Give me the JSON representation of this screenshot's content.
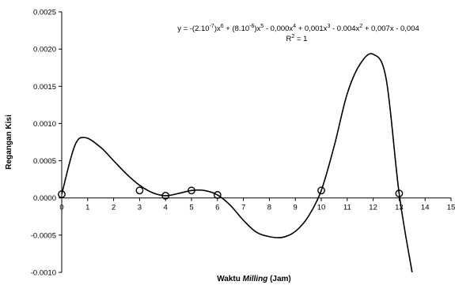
{
  "chart_data": {
    "type": "scatter",
    "xlabel_parts": [
      "Waktu ",
      "Milling",
      " (Jam)"
    ],
    "ylabel": "Regangan Kisi",
    "xlim": [
      0,
      15
    ],
    "ylim": [
      -0.001,
      0.0025
    ],
    "x_ticks": [
      "0",
      "1",
      "2",
      "3",
      "4",
      "5",
      "6",
      "7",
      "8",
      "9",
      "10",
      "11",
      "12",
      "13",
      "14",
      "15"
    ],
    "y_ticks": [
      "-0.0010",
      "-0.0005",
      "0.0000",
      "0.0005",
      "0.0010",
      "0.0015",
      "0.0020",
      "0.0025"
    ],
    "series": [
      {
        "marker": "open-circle",
        "x": [
          0,
          3,
          4,
          5,
          6,
          10,
          13
        ],
        "y": [
          5e-05,
          0.0001,
          3e-05,
          0.0001,
          4e-05,
          0.0001,
          6e-05
        ]
      }
    ],
    "trendline": {
      "type": "polynomial",
      "x": [
        0,
        0.5,
        0.9,
        1.5,
        2,
        2.5,
        3,
        3.5,
        4,
        4.5,
        5,
        5.5,
        6,
        6.5,
        7,
        7.5,
        8,
        8.5,
        9,
        9.5,
        10,
        10.5,
        11,
        11.5,
        12,
        12.5,
        13,
        13.5
      ],
      "y": [
        5e-05,
        0.0007,
        0.00081,
        0.00068,
        0.0005,
        0.00032,
        0.00017,
        7e-05,
        3e-05,
        6e-05,
        0.0001,
        0.0001,
        4e-05,
        -0.0001,
        -0.0003,
        -0.00046,
        -0.00052,
        -0.00053,
        -0.00045,
        -0.00025,
        0.0001,
        0.0007,
        0.0014,
        0.0018,
        0.00193,
        0.0016,
        6e-05,
        -0.001
      ],
      "equation_parts": [
        "y = -(2.10",
        "-7",
        ")x",
        "6",
        " + (8.10",
        "-6",
        ")x",
        "5",
        " - 0,000x",
        "4",
        " + 0,001x",
        "3",
        " - 0.004x",
        "2",
        " + 0,007x - 0,004"
      ],
      "r2_parts": [
        "R",
        "2",
        " = 1"
      ]
    },
    "grid": false,
    "legend": "none"
  }
}
